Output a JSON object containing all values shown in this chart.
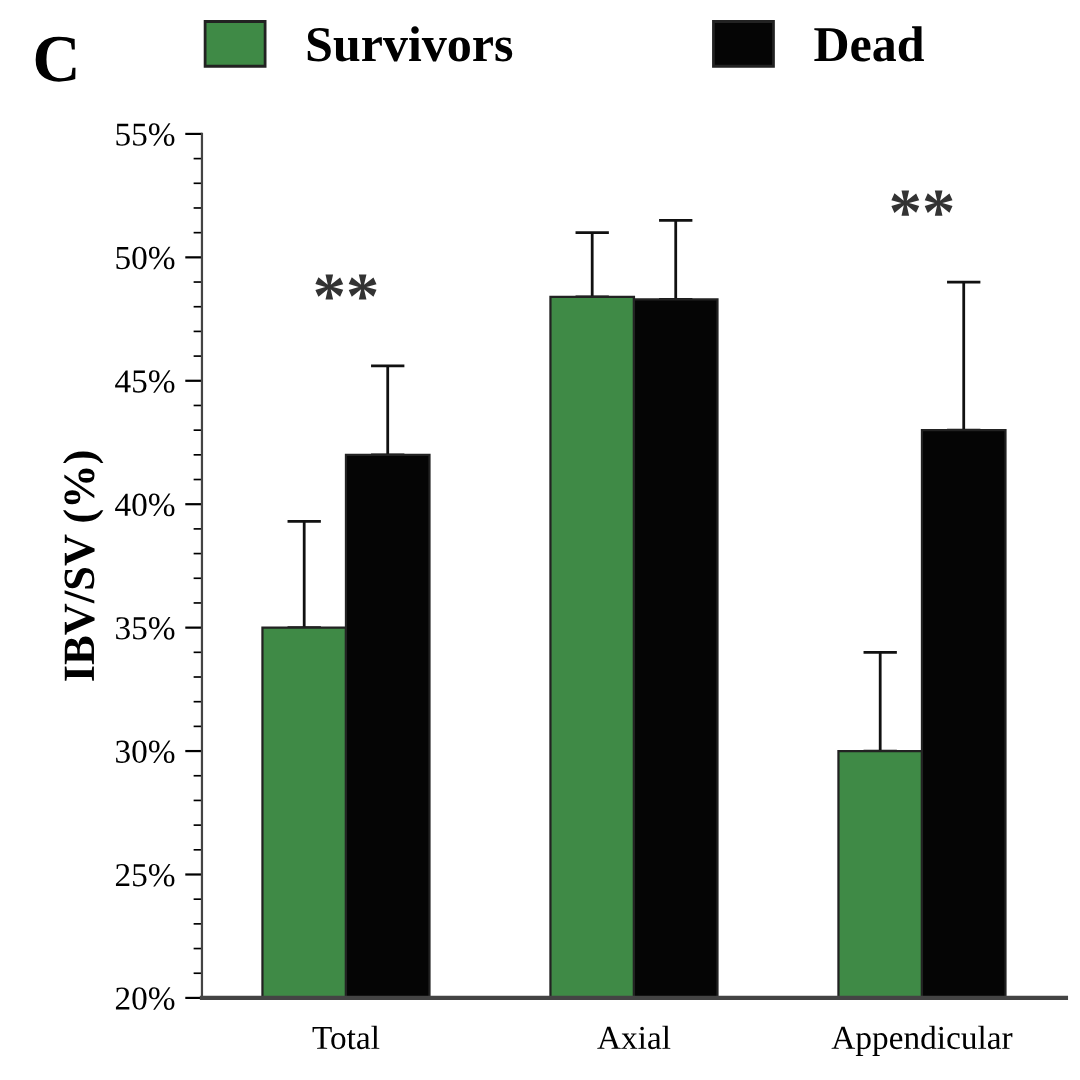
{
  "chart_data": {
    "type": "bar",
    "title": "C",
    "ylabel": "IBV/SV (%)",
    "categories": [
      "Total",
      "Axial",
      "Appendicular"
    ],
    "series": [
      {
        "name": "Survivors",
        "color": "#3f8a46",
        "values": [
          35,
          48.4,
          30
        ],
        "errors": [
          [
            35,
            39.3
          ],
          [
            48.4,
            51
          ],
          [
            30,
            34
          ]
        ]
      },
      {
        "name": "Dead",
        "color": "#050505",
        "values": [
          42,
          48.3,
          43
        ],
        "errors": [
          [
            42,
            45.6
          ],
          [
            48.3,
            51.5
          ],
          [
            43,
            49
          ]
        ]
      }
    ],
    "ylim": [
      20,
      55
    ],
    "yticks": [
      {
        "value": 20,
        "label": "20%"
      },
      {
        "value": 25,
        "label": "25%"
      },
      {
        "value": 30,
        "label": "30%"
      },
      {
        "value": 35,
        "label": "35%"
      },
      {
        "value": 40,
        "label": "40%"
      },
      {
        "value": 45,
        "label": "45%"
      },
      {
        "value": 50,
        "label": "50%"
      },
      {
        "value": 55,
        "label": "55%"
      }
    ],
    "annotations": [
      "**",
      "**"
    ],
    "legend": "top",
    "grid": false
  }
}
